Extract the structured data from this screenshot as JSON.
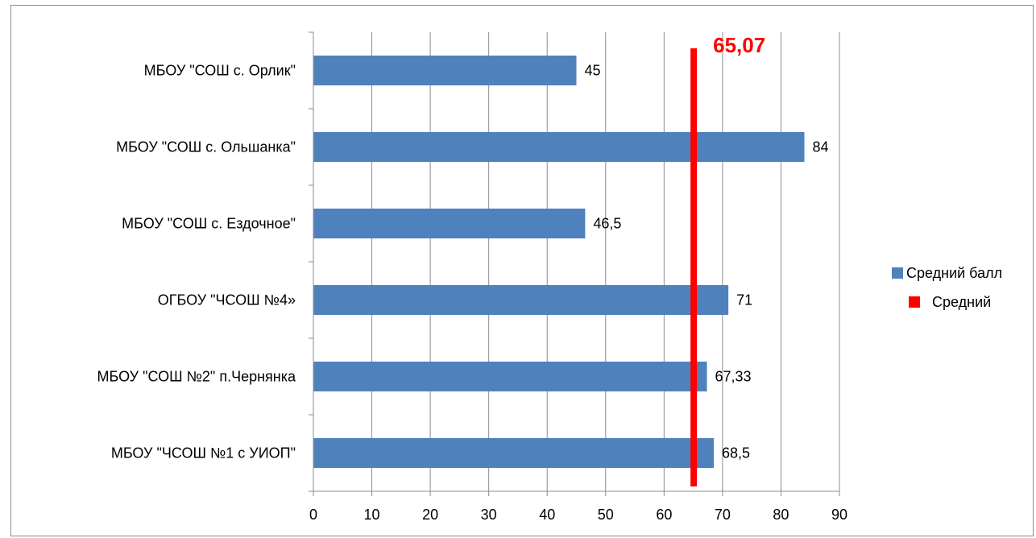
{
  "chart_data": {
    "type": "bar",
    "orientation": "horizontal",
    "categories": [
      "МБОУ \"СОШ с. Орлик\"",
      "МБОУ \"СОШ с. Ольшанка\"",
      "МБОУ \"СОШ с. Ездочное\"",
      "ОГБОУ \"ЧСОШ №4»",
      "МБОУ \"СОШ №2\" п.Чернянка",
      "МБОУ \"ЧСОШ №1 с УИОП\""
    ],
    "series": [
      {
        "name": "Средний балл",
        "color": "#4f81bd",
        "values": [
          45,
          84,
          46.5,
          71,
          67.33,
          68.5
        ],
        "value_labels": [
          "45",
          "84",
          "46,5",
          "71",
          "67,33",
          "68,5"
        ]
      }
    ],
    "reference_line": {
      "name": "Средний",
      "value": 65.07,
      "label": "65,07",
      "color": "#ff0000"
    },
    "xlim": [
      0,
      90
    ],
    "x_ticks": [
      0,
      10,
      20,
      30,
      40,
      50,
      60,
      70,
      80,
      90
    ],
    "grid": true,
    "legend": "right"
  }
}
